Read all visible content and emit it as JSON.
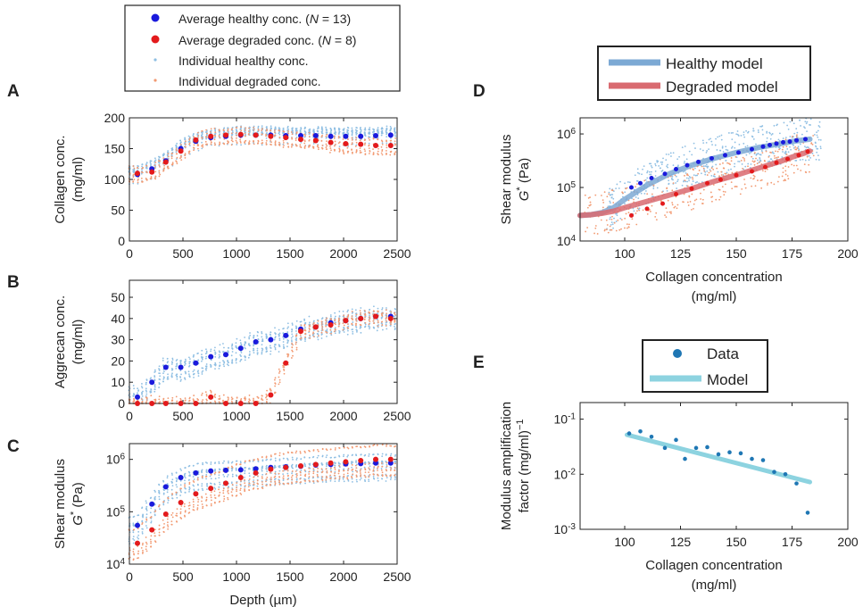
{
  "colors": {
    "healthy_avg": "#1a1adc",
    "degraded_avg": "#e31a1c",
    "healthy_ind": "#8fbfe3",
    "degraded_ind": "#f29a72",
    "healthy_model": "#7ca9d4",
    "degraded_model": "#d96a70",
    "e_data": "#1f77b4",
    "e_model": "#8dd3e0"
  },
  "legend_main": {
    "healthy_avg": {
      "pre": "Average healthy conc. (",
      "n": "N",
      "post": " = 13)"
    },
    "degraded_avg": {
      "pre": "Average degraded conc. (",
      "n": "N",
      "post": " = 8)"
    },
    "healthy_ind": "Individual healthy conc.",
    "degraded_ind": "Individual degraded conc."
  },
  "chart_data": [
    {
      "panel": "A",
      "type": "scatter",
      "ylabel": [
        "Collagen conc.",
        "(mg/ml)"
      ],
      "xlim": [
        0,
        2500
      ],
      "ylim": [
        0,
        200
      ],
      "xticks": [
        "0",
        "500",
        "1000",
        "1500",
        "2000",
        "2500"
      ],
      "yticks": [
        "0",
        "50",
        "100",
        "150",
        "200"
      ],
      "series": [
        {
          "name": "Average healthy conc.",
          "x": [
            75,
            210,
            340,
            480,
            620,
            760,
            900,
            1040,
            1180,
            1320,
            1460,
            1600,
            1740,
            1880,
            2020,
            2160,
            2300,
            2440
          ],
          "y": [
            108,
            117,
            130,
            150,
            162,
            168,
            170,
            172,
            172,
            172,
            171,
            171,
            171,
            170,
            170,
            170,
            171,
            172
          ]
        },
        {
          "name": "Average degraded conc.",
          "x": [
            75,
            210,
            340,
            480,
            620,
            760,
            900,
            1040,
            1180,
            1320,
            1460,
            1600,
            1740,
            1880,
            2020,
            2160,
            2300,
            2440
          ],
          "y": [
            110,
            112,
            128,
            146,
            164,
            170,
            172,
            173,
            172,
            170,
            168,
            165,
            163,
            160,
            158,
            157,
            155,
            155
          ]
        }
      ]
    },
    {
      "panel": "B",
      "type": "scatter",
      "ylabel": [
        "Aggrecan conc.",
        "(mg/ml)"
      ],
      "xlim": [
        0,
        2500
      ],
      "ylim": [
        0,
        58
      ],
      "xticks": [
        "0",
        "500",
        "1000",
        "1500",
        "2000",
        "2500"
      ],
      "yticks": [
        "0",
        "10",
        "20",
        "30",
        "40",
        "50"
      ],
      "series": [
        {
          "name": "Average healthy conc.",
          "x": [
            75,
            210,
            340,
            480,
            620,
            760,
            900,
            1040,
            1180,
            1320,
            1460,
            1600,
            1740,
            1880,
            2020,
            2160,
            2300,
            2440
          ],
          "y": [
            3,
            10,
            17,
            17,
            19,
            22,
            23,
            26,
            29,
            30,
            32,
            35,
            36,
            38,
            39,
            40,
            41,
            41
          ]
        },
        {
          "name": "Average degraded conc.",
          "x": [
            75,
            210,
            340,
            480,
            620,
            760,
            900,
            1040,
            1180,
            1320,
            1460,
            1600,
            1740,
            1880,
            2020,
            2160,
            2300,
            2440
          ],
          "y": [
            0,
            0,
            0,
            0,
            0,
            3,
            0,
            0,
            0,
            4,
            19,
            34,
            36,
            37,
            39,
            40,
            41,
            40
          ]
        }
      ]
    },
    {
      "panel": "C",
      "type": "scatter",
      "yscale": "log",
      "ylabel": [
        "Shear modulus",
        "G* (Pa)"
      ],
      "xlabel": "Depth (µm)",
      "xlim": [
        0,
        2500
      ],
      "ylim": [
        10000,
        2000000
      ],
      "xticks": [
        "0",
        "500",
        "1000",
        "1500",
        "2000",
        "2500"
      ],
      "yticks": [
        "10^4",
        "10^5",
        "10^6"
      ],
      "series": [
        {
          "name": "Average healthy conc.",
          "x": [
            75,
            210,
            340,
            480,
            620,
            760,
            900,
            1040,
            1180,
            1320,
            1460,
            1600,
            1740,
            1880,
            2020,
            2160,
            2300,
            2440
          ],
          "y": [
            55000,
            140000,
            300000,
            450000,
            550000,
            600000,
            620000,
            630000,
            660000,
            700000,
            720000,
            740000,
            780000,
            800000,
            820000,
            830000,
            850000,
            850000
          ]
        },
        {
          "name": "Average degraded conc.",
          "x": [
            75,
            210,
            340,
            480,
            620,
            760,
            900,
            1040,
            1180,
            1320,
            1460,
            1600,
            1740,
            1880,
            2020,
            2160,
            2300,
            2440
          ],
          "y": [
            25000,
            45000,
            90000,
            150000,
            220000,
            280000,
            350000,
            450000,
            550000,
            650000,
            700000,
            750000,
            800000,
            850000,
            900000,
            950000,
            1000000,
            1000000
          ]
        }
      ]
    },
    {
      "panel": "D",
      "type": "scatter",
      "yscale": "log",
      "ylabel": [
        "Shear modulus",
        "G* (Pa)"
      ],
      "xlabel": [
        "Collagen concentration",
        "(mg/ml)"
      ],
      "xlim": [
        80,
        200
      ],
      "ylim": [
        10000,
        2000000
      ],
      "xticks": [
        "100",
        "125",
        "150",
        "175",
        "200"
      ],
      "yticks": [
        "10^4",
        "10^5",
        "10^6"
      ],
      "legend": [
        "Healthy model",
        "Degraded model"
      ],
      "series": [
        {
          "name": "Average healthy conc.",
          "x": [
            103,
            107,
            112,
            118,
            123,
            128,
            133,
            139,
            145,
            151,
            157,
            162,
            165,
            168,
            171,
            174,
            177,
            181
          ],
          "y": [
            100000,
            120000,
            150000,
            180000,
            220000,
            260000,
            300000,
            350000,
            400000,
            450000,
            520000,
            580000,
            620000,
            660000,
            700000,
            720000,
            760000,
            800000
          ]
        },
        {
          "name": "Average degraded conc.",
          "x": [
            103,
            110,
            117,
            123,
            130,
            137,
            143,
            150,
            157,
            163,
            168,
            173,
            178,
            182
          ],
          "y": [
            30000,
            40000,
            50000,
            75000,
            95000,
            120000,
            140000,
            170000,
            200000,
            240000,
            290000,
            340000,
            400000,
            470000
          ]
        },
        {
          "name": "Healthy model",
          "x": [
            80,
            85,
            90,
            95,
            100,
            110,
            120,
            130,
            140,
            150,
            160,
            170,
            175,
            180,
            183
          ],
          "y": [
            30000,
            31000,
            34000,
            42000,
            60000,
            110000,
            180000,
            260000,
            350000,
            450000,
            560000,
            660000,
            720000,
            770000,
            800000
          ]
        },
        {
          "name": "Degraded model",
          "x": [
            80,
            85,
            90,
            95,
            100,
            110,
            120,
            130,
            140,
            150,
            160,
            170,
            175,
            180,
            183
          ],
          "y": [
            30000,
            31000,
            33000,
            36000,
            42000,
            55000,
            72000,
            95000,
            130000,
            170000,
            230000,
            310000,
            370000,
            430000,
            480000
          ]
        }
      ]
    },
    {
      "panel": "E",
      "type": "scatter",
      "yscale": "log",
      "ylabel": [
        "Modulus amplification",
        "factor (mg/ml)^-1"
      ],
      "xlabel": [
        "Collagen concentration",
        "(mg/ml)"
      ],
      "xlim": [
        80,
        200
      ],
      "ylim": [
        0.001,
        0.2
      ],
      "xticks": [
        "100",
        "125",
        "150",
        "175",
        "200"
      ],
      "yticks": [
        "10^-3",
        "10^-2",
        "10^-1"
      ],
      "legend": [
        "Data",
        "Model"
      ],
      "series": [
        {
          "name": "Data",
          "x": [
            102,
            107,
            112,
            118,
            123,
            127,
            132,
            137,
            142,
            147,
            152,
            157,
            162,
            167,
            172,
            177,
            182
          ],
          "y": [
            0.055,
            0.06,
            0.048,
            0.03,
            0.042,
            0.019,
            0.03,
            0.031,
            0.023,
            0.025,
            0.024,
            0.019,
            0.018,
            0.011,
            0.01,
            0.0068,
            0.002
          ]
        },
        {
          "name": "Model",
          "x": [
            101,
            183
          ],
          "y": [
            0.052,
            0.0072
          ]
        }
      ]
    }
  ]
}
